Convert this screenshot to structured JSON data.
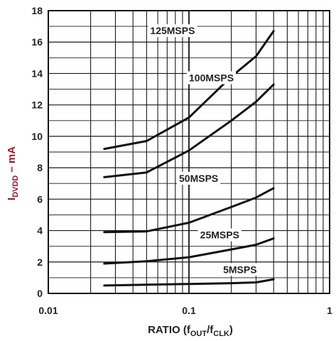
{
  "chart_data": {
    "type": "line",
    "x_scale": "log",
    "xlim": [
      0.01,
      1
    ],
    "ylim": [
      0,
      18
    ],
    "grid": true,
    "x_ticks": [
      "0.01",
      "0.1",
      "1"
    ],
    "y_ticks": [
      "0",
      "2",
      "4",
      "6",
      "8",
      "10",
      "12",
      "14",
      "16",
      "18"
    ],
    "ylabel": {
      "main": "I",
      "sub": "DVDD",
      "suffix": " – mA"
    },
    "xlabel": {
      "prefix": "RATIO (f",
      "sub1": "OUT",
      "mid": "/f",
      "sub2": "CLK",
      "suffix": ")"
    },
    "colors": {
      "line": "#111111",
      "grid": "#1a1a1a",
      "ylabel": "#9a1a2a"
    },
    "series": [
      {
        "name": "125MSPS",
        "x": [
          0.025,
          0.05,
          0.1,
          0.2,
          0.3,
          0.4
        ],
        "y": [
          9.2,
          9.7,
          11.2,
          13.8,
          15.1,
          16.7
        ]
      },
      {
        "name": "100MSPS",
        "x": [
          0.025,
          0.05,
          0.1,
          0.2,
          0.3,
          0.4
        ],
        "y": [
          7.4,
          7.7,
          9.1,
          11.0,
          12.2,
          13.3
        ]
      },
      {
        "name": "50MSPS",
        "x": [
          0.025,
          0.05,
          0.1,
          0.2,
          0.3,
          0.4
        ],
        "y": [
          3.9,
          3.95,
          4.5,
          5.5,
          6.1,
          6.7
        ]
      },
      {
        "name": "25MSPS",
        "x": [
          0.025,
          0.05,
          0.1,
          0.2,
          0.3,
          0.4
        ],
        "y": [
          1.9,
          2.05,
          2.3,
          2.8,
          3.1,
          3.5
        ]
      },
      {
        "name": "5MSPS",
        "x": [
          0.025,
          0.05,
          0.1,
          0.2,
          0.3,
          0.4
        ],
        "y": [
          0.5,
          0.55,
          0.6,
          0.65,
          0.7,
          0.9
        ]
      }
    ]
  }
}
